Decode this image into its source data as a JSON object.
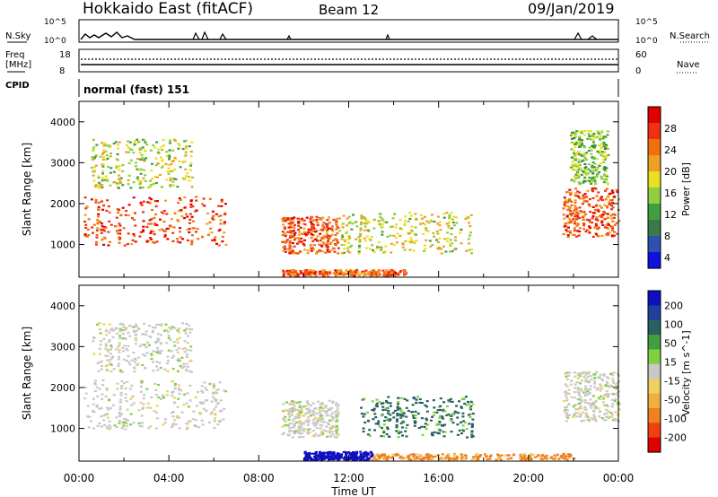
{
  "header": {
    "title": "Hokkaido East (fitACF)",
    "beam": "Beam 12",
    "date": "09/Jan/2019"
  },
  "strips": {
    "nsky_label": "N.Sky",
    "nsky_ticks": [
      "10^5",
      "10^0"
    ],
    "nsearch_label": "N.Search",
    "nsearch_ticks": [
      "10^5",
      "10^0"
    ],
    "freq_label": "Freq",
    "freq_unit": "[MHz]",
    "freq_ticks": [
      "18",
      "8"
    ],
    "nave_label": "Nave",
    "nave_ticks": [
      "60",
      "0"
    ],
    "cpid_label": "CPID",
    "cpid_value": "normal (fast) 151"
  },
  "colors": {
    "power_scale": [
      "#1010e0",
      "#3050b0",
      "#3a7a4a",
      "#40a040",
      "#90d040",
      "#e8e020",
      "#f0a020",
      "#f07010",
      "#f03010",
      "#e00000"
    ],
    "velocity_scale": [
      "#e00000",
      "#f04010",
      "#f08020",
      "#f0b040",
      "#f0d060",
      "#c8c8c8",
      "#80d040",
      "#40a040",
      "#2a6060",
      "#2040a0",
      "#1010c0"
    ]
  },
  "chart_data": [
    {
      "type": "heatmap",
      "panel": "power",
      "ylabel": "Slant Range [km]",
      "xlabel": "Time UT",
      "x_ticks": [
        "00:00",
        "04:00",
        "08:00",
        "12:00",
        "16:00",
        "20:00",
        "00:00"
      ],
      "y_ticks": [
        1000,
        2000,
        3000,
        4000
      ],
      "ylim": [
        200,
        4500
      ],
      "colorbar_label": "Power [dB]",
      "colorbar_ticks": [
        4,
        8,
        12,
        16,
        20,
        24,
        28
      ],
      "regions": [
        {
          "t0": 0.2,
          "t1": 6.5,
          "r0": 1000,
          "r1": 2200,
          "value": 27
        },
        {
          "t0": 0.5,
          "t1": 5.0,
          "r0": 2400,
          "r1": 3600,
          "value": 17
        },
        {
          "t0": 9.0,
          "t1": 11.5,
          "r0": 800,
          "r1": 1700,
          "value": 26
        },
        {
          "t0": 11.5,
          "t1": 17.5,
          "r0": 800,
          "r1": 1800,
          "value": 18
        },
        {
          "t0": 9.0,
          "t1": 14.5,
          "r0": 250,
          "r1": 400,
          "value": 25
        },
        {
          "t0": 21.5,
          "t1": 24.0,
          "r0": 1200,
          "r1": 2400,
          "value": 26
        },
        {
          "t0": 21.8,
          "t1": 23.5,
          "r0": 2500,
          "r1": 3800,
          "value": 15
        }
      ]
    },
    {
      "type": "heatmap",
      "panel": "velocity",
      "ylabel": "Slant Range [km]",
      "xlabel": "Time UT",
      "x_ticks": [
        "00:00",
        "04:00",
        "08:00",
        "12:00",
        "16:00",
        "20:00",
        "00:00"
      ],
      "y_ticks": [
        1000,
        2000,
        3000,
        4000
      ],
      "ylim": [
        200,
        4500
      ],
      "colorbar_label": "Velocity [m s^-1]",
      "colorbar_ticks": [
        200,
        100,
        50,
        15,
        -15,
        -50,
        -100,
        -200
      ],
      "regions": [
        {
          "t0": 0.2,
          "t1": 6.5,
          "r0": 1000,
          "r1": 2200,
          "value": 0
        },
        {
          "t0": 0.5,
          "t1": 5.0,
          "r0": 2400,
          "r1": 3600,
          "value": 0
        },
        {
          "t0": 9.0,
          "t1": 11.5,
          "r0": 800,
          "r1": 1700,
          "value": 0
        },
        {
          "t0": 12.5,
          "t1": 17.5,
          "r0": 800,
          "r1": 1800,
          "value": 60
        },
        {
          "t0": 10.0,
          "t1": 13.0,
          "r0": 250,
          "r1": 450,
          "value": 200
        },
        {
          "t0": 13.0,
          "t1": 22.0,
          "r0": 250,
          "r1": 400,
          "value": -60
        },
        {
          "t0": 21.5,
          "t1": 24.0,
          "r0": 1200,
          "r1": 2400,
          "value": 0
        }
      ]
    }
  ]
}
